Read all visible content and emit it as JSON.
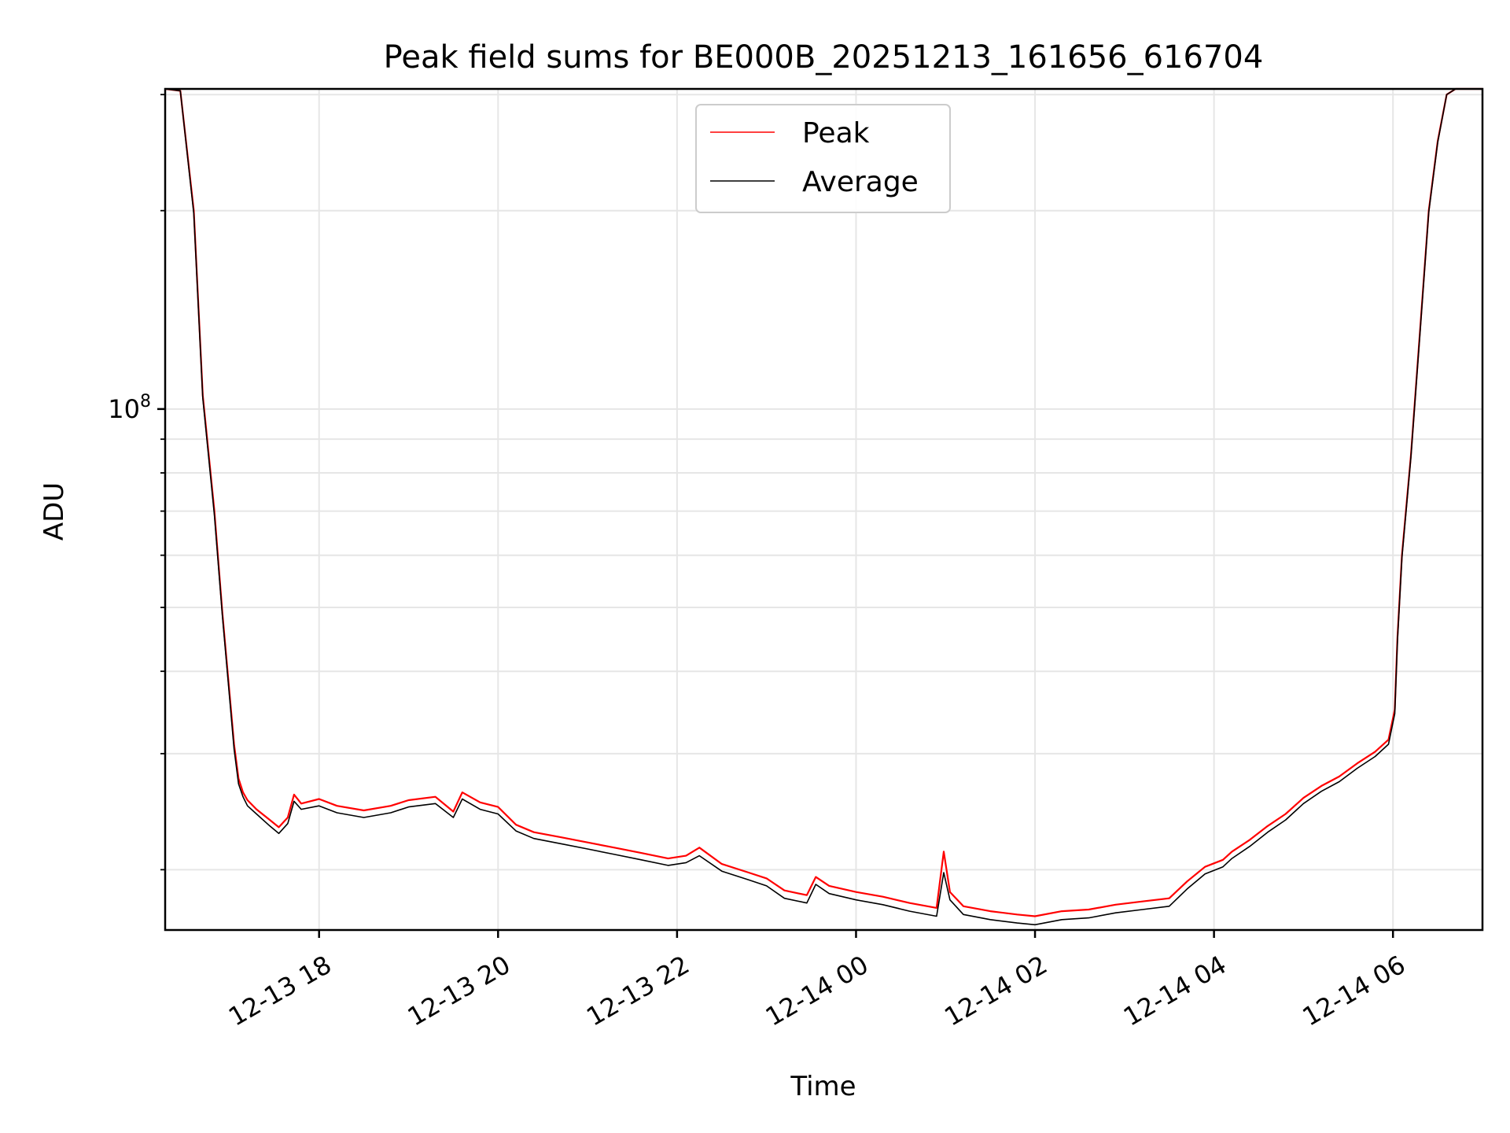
{
  "chart_data": {
    "type": "line",
    "title": "Peak field sums for BE000B_20251213_161656_616704",
    "xlabel": "Time",
    "ylabel": "ADU",
    "yscale": "log",
    "xlim_hours": [
      16.28,
      31.0
    ],
    "ylim": [
      16200000,
      306000000
    ],
    "x_tick_labels": [
      {
        "hours": 18,
        "label": "12-13 18"
      },
      {
        "hours": 20,
        "label": "12-13 20"
      },
      {
        "hours": 22,
        "label": "12-13 22"
      },
      {
        "hours": 24,
        "label": "12-14 00"
      },
      {
        "hours": 26,
        "label": "12-14 02"
      },
      {
        "hours": 28,
        "label": "12-14 04"
      },
      {
        "hours": 30,
        "label": "12-14 06"
      }
    ],
    "y_major_tick": {
      "value": 100000000,
      "label_base": "10",
      "label_exp": "8"
    },
    "y_minor_ticks": [
      20000000,
      30000000,
      40000000,
      50000000,
      60000000,
      70000000,
      80000000,
      90000000,
      200000000,
      300000000
    ],
    "grid": true,
    "legend": {
      "position": "top-center",
      "entries": [
        {
          "name": "Peak",
          "color": "#ff0000"
        },
        {
          "name": "Average",
          "color": "#000000"
        }
      ]
    },
    "series": [
      {
        "name": "Peak",
        "color": "#ff0000",
        "time_hours": [
          16.28,
          16.45,
          16.6,
          16.7,
          16.83,
          16.92,
          17.0,
          17.05,
          17.1,
          17.15,
          17.2,
          17.3,
          17.45,
          17.55,
          17.65,
          17.72,
          17.8,
          18.0,
          18.2,
          18.5,
          18.8,
          19.0,
          19.3,
          19.5,
          19.6,
          19.8,
          20.0,
          20.2,
          20.4,
          20.7,
          21.0,
          21.3,
          21.6,
          21.9,
          22.1,
          22.25,
          22.5,
          22.8,
          23.0,
          23.2,
          23.45,
          23.55,
          23.7,
          24.0,
          24.3,
          24.6,
          24.9,
          24.98,
          25.05,
          25.2,
          25.5,
          25.8,
          26.0,
          26.3,
          26.6,
          26.9,
          27.2,
          27.5,
          27.7,
          27.9,
          28.1,
          28.2,
          28.4,
          28.6,
          28.8,
          29.0,
          29.2,
          29.4,
          29.6,
          29.8,
          29.95,
          30.02,
          30.05,
          30.1,
          30.2,
          30.3,
          30.4,
          30.5,
          30.6,
          30.7,
          31.0
        ],
        "values": [
          306000000,
          304000000,
          200000000,
          105000000,
          70000000,
          49000000,
          37000000,
          31000000,
          27500000,
          26200000,
          25500000,
          24700000,
          23800000,
          23200000,
          24000000,
          26000000,
          25200000,
          25600000,
          25000000,
          24600000,
          25000000,
          25500000,
          25800000,
          24500000,
          26200000,
          25300000,
          24900000,
          23400000,
          22800000,
          22400000,
          22000000,
          21600000,
          21200000,
          20800000,
          21000000,
          21600000,
          20400000,
          19800000,
          19400000,
          18600000,
          18300000,
          19500000,
          18900000,
          18500000,
          18200000,
          17800000,
          17500000,
          21300000,
          18500000,
          17600000,
          17300000,
          17100000,
          17000000,
          17300000,
          17400000,
          17700000,
          17900000,
          18100000,
          19200000,
          20200000,
          20700000,
          21300000,
          22200000,
          23300000,
          24300000,
          25700000,
          26800000,
          27700000,
          29000000,
          30200000,
          31500000,
          35000000,
          45000000,
          60000000,
          85000000,
          130000000,
          200000000,
          255000000,
          300000000,
          306000000,
          306000000
        ]
      },
      {
        "name": "Average",
        "color": "#000000",
        "time_hours": [
          16.28,
          16.45,
          16.6,
          16.7,
          16.83,
          16.92,
          17.0,
          17.05,
          17.1,
          17.15,
          17.2,
          17.3,
          17.45,
          17.55,
          17.65,
          17.72,
          17.8,
          18.0,
          18.2,
          18.5,
          18.8,
          19.0,
          19.3,
          19.5,
          19.6,
          19.8,
          20.0,
          20.2,
          20.4,
          20.7,
          21.0,
          21.3,
          21.6,
          21.9,
          22.1,
          22.25,
          22.5,
          22.8,
          23.0,
          23.2,
          23.45,
          23.55,
          23.7,
          24.0,
          24.3,
          24.6,
          24.9,
          24.98,
          25.05,
          25.2,
          25.5,
          25.8,
          26.0,
          26.3,
          26.6,
          26.9,
          27.2,
          27.5,
          27.7,
          27.9,
          28.1,
          28.2,
          28.4,
          28.6,
          28.8,
          29.0,
          29.2,
          29.4,
          29.6,
          29.8,
          29.95,
          30.02,
          30.05,
          30.1,
          30.2,
          30.3,
          30.4,
          30.5,
          30.6,
          30.7,
          31.0
        ],
        "values": [
          306000000,
          304000000,
          198000000,
          104000000,
          69000000,
          48500000,
          36500000,
          30500000,
          27000000,
          25800000,
          25000000,
          24300000,
          23300000,
          22700000,
          23500000,
          25400000,
          24700000,
          25000000,
          24400000,
          24000000,
          24400000,
          24900000,
          25200000,
          24000000,
          25600000,
          24700000,
          24300000,
          22900000,
          22300000,
          21900000,
          21500000,
          21100000,
          20700000,
          20300000,
          20500000,
          21000000,
          19900000,
          19300000,
          18900000,
          18100000,
          17800000,
          19000000,
          18400000,
          18000000,
          17700000,
          17300000,
          17000000,
          19800000,
          18000000,
          17100000,
          16800000,
          16600000,
          16500000,
          16800000,
          16900000,
          17200000,
          17400000,
          17600000,
          18700000,
          19700000,
          20200000,
          20800000,
          21700000,
          22800000,
          23800000,
          25200000,
          26300000,
          27200000,
          28500000,
          29700000,
          31000000,
          34500000,
          44500000,
          59500000,
          84500000,
          129000000,
          199000000,
          254000000,
          300000000,
          306000000,
          306000000
        ]
      }
    ]
  }
}
